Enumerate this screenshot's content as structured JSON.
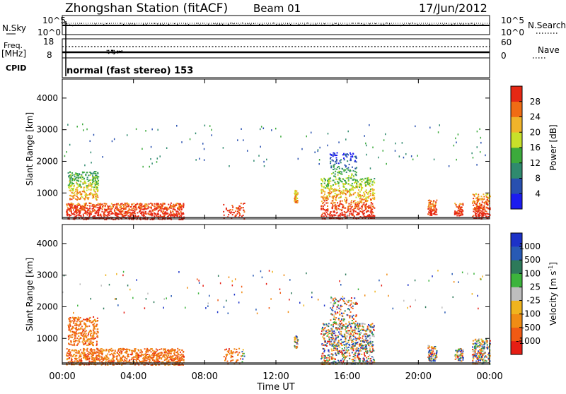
{
  "header": {
    "title": "Zhongshan Station (fitACF)",
    "beam": "Beam 01",
    "date": "17/Jun/2012"
  },
  "strips": {
    "nsky_label": "N.Sky",
    "nsky_ticks": [
      "10^5",
      "10^0"
    ],
    "nsearch_label": "N.Search",
    "nsearch_ticks": [
      "10^5",
      "10^0"
    ],
    "freq_label": "Freq.",
    "freq_unit": "[MHz]",
    "freq_ticks": [
      "18",
      "8"
    ],
    "nave_label": "Nave",
    "nave_ticks": [
      "60",
      "0"
    ],
    "cpid_label": "CPID",
    "cpid_text": "normal (fast stereo) 153"
  },
  "chart_data": [
    {
      "type": "heatmap",
      "name": "power",
      "ylabel": "Slant Range [km]",
      "xlabel": "",
      "x_ticks": [
        "00:00",
        "04:00",
        "08:00",
        "12:00",
        "16:00",
        "20:00",
        "00:00"
      ],
      "x_range_hours": [
        0,
        24
      ],
      "ylim": [
        180,
        4600
      ],
      "y_ticks": [
        1000,
        2000,
        3000,
        4000
      ],
      "colorbar": {
        "label": "Power [dB]",
        "ticks": [
          "4",
          "8",
          "12",
          "16",
          "20",
          "24",
          "28"
        ],
        "colors": [
          "#1c1cf0",
          "#2850b0",
          "#2f8a6e",
          "#3caa3c",
          "#c8e12a",
          "#f0b42a",
          "#f06c14",
          "#e62814"
        ]
      }
    },
    {
      "type": "heatmap",
      "name": "velocity",
      "ylabel": "Slant Range [km]",
      "xlabel": "Time UT",
      "x_ticks": [
        "00:00",
        "04:00",
        "08:00",
        "12:00",
        "16:00",
        "20:00",
        "00:00"
      ],
      "x_range_hours": [
        0,
        24
      ],
      "ylim": [
        180,
        4600
      ],
      "y_ticks": [
        1000,
        2000,
        3000,
        4000
      ],
      "colorbar": {
        "label": "Velocity [m s",
        "label_sup": "-1",
        "label_end": "]",
        "ticks": [
          "1000",
          "500",
          "100",
          "25",
          "-25",
          "-100",
          "-500",
          "-1000"
        ],
        "colors": [
          "#1c32c8",
          "#285ab4",
          "#2d7a5a",
          "#3cb43c",
          "#bebebe",
          "#f0b41e",
          "#f08c14",
          "#f05a14",
          "#e61e14"
        ]
      }
    }
  ]
}
